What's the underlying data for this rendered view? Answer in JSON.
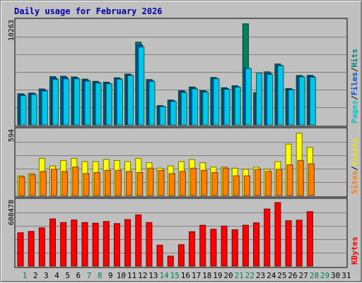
{
  "chart_data": {
    "type": "bar",
    "title": "Daily usage for February 2026",
    "x": [
      "1",
      "2",
      "3",
      "4",
      "5",
      "6",
      "7",
      "8",
      "9",
      "10",
      "11",
      "12",
      "13",
      "14",
      "15",
      "16",
      "17",
      "18",
      "19",
      "20",
      "21",
      "22",
      "23",
      "24",
      "25",
      "26",
      "27",
      "28",
      "29",
      "30",
      "31"
    ],
    "weekend_days": [
      "1",
      "7",
      "8",
      "14",
      "15",
      "21",
      "22",
      "28",
      "29"
    ],
    "panels": [
      {
        "name": "hits-files-pages",
        "ylabel_parts": [
          "Pages",
          "/",
          "Files",
          "/",
          "Hits"
        ],
        "ylabel_colors": [
          "#00c8c8",
          "#000000",
          "#0050d0",
          "#000000",
          "#008080"
        ],
        "max_label": "10263",
        "ymax": 10263,
        "series": [
          {
            "name": "Hits",
            "color": "#008060",
            "values": [
              3080,
              3150,
              3560,
              4780,
              4810,
              4750,
              4530,
              4310,
              4230,
              4660,
              5030,
              8180,
              4490,
              1910,
              2460,
              3380,
              3750,
              3400,
              4690,
              3680,
              3880,
              10000,
              3200,
              5250,
              6030,
              3600,
              4890,
              4900,
              0,
              0,
              0
            ]
          },
          {
            "name": "Files",
            "color": "#0050d0",
            "values": [
              3000,
              3100,
              3450,
              4650,
              4700,
              4650,
              4420,
              4210,
              4120,
              4580,
              4950,
              7900,
              4380,
              1850,
              2380,
              3300,
              3650,
              3300,
              4600,
              3600,
              3780,
              5600,
              3100,
              5100,
              5900,
              3520,
              4800,
              4820,
              0,
              0,
              0
            ]
          },
          {
            "name": "Pages",
            "color": "#00c8e8",
            "values": [
              2900,
              3000,
              3350,
              4500,
              4550,
              4560,
              4330,
              4140,
              4070,
              4520,
              4890,
              7700,
              4300,
              1810,
              2320,
              3210,
              3560,
              3240,
              4560,
              3520,
              3730,
              5580,
              5120,
              5000,
              5860,
              3470,
              4750,
              4720,
              0,
              0,
              0
            ]
          }
        ]
      },
      {
        "name": "visits-sites",
        "ylabel_parts": [
          "Sites",
          "/",
          "Visits"
        ],
        "ylabel_colors": [
          "#ff8000",
          "#000000",
          "#e8e800"
        ],
        "max_label": "594",
        "ymax": 594,
        "series": [
          {
            "name": "Visits",
            "color": "#ffff00",
            "values": [
              180,
              200,
              340,
              270,
              320,
              340,
              310,
              310,
              330,
              320,
              310,
              340,
              300,
              250,
              270,
              310,
              330,
              300,
              260,
              260,
              250,
              240,
              260,
              240,
              310,
              470,
              570,
              440,
              0,
              0,
              0
            ]
          },
          {
            "name": "Sites",
            "color": "#ff8000",
            "values": [
              170,
              190,
              220,
              240,
              220,
              260,
              200,
              210,
              230,
              230,
              220,
              210,
              250,
              230,
              200,
              220,
              250,
              230,
              210,
              250,
              180,
              180,
              240,
              220,
              240,
              280,
              320,
              290,
              0,
              0,
              0
            ]
          }
        ]
      },
      {
        "name": "kbytes",
        "ylabel_parts": [
          "KBytes"
        ],
        "ylabel_colors": [
          "#ff0000"
        ],
        "max_label": "608478",
        "ymax": 608478,
        "series": [
          {
            "name": "KBytes",
            "color": "#ff0000",
            "values": [
              312000,
              325000,
              358000,
              442000,
              408000,
              432000,
              408000,
              402000,
              418000,
              398000,
              436000,
              480000,
              408000,
              196000,
              93000,
              200000,
              322000,
              382000,
              345000,
              375000,
              340000,
              383000,
              405000,
              535000,
              595000,
              425000,
              430000,
              510000,
              0,
              0,
              0
            ]
          }
        ]
      }
    ]
  }
}
